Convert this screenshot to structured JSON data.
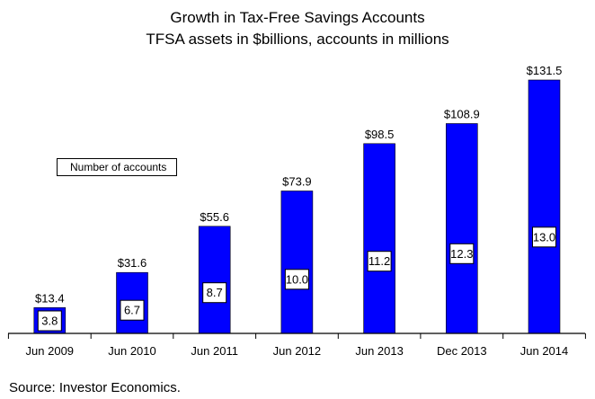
{
  "chart_data": {
    "type": "bar",
    "title": "Growth in Tax-Free Savings Accounts",
    "subtitle": "TFSA assets in $billions, accounts in millions",
    "categories": [
      "Jun 2009",
      "Jun 2010",
      "Jun 2011",
      "Jun 2012",
      "Jun 2013",
      "Dec 2013",
      "Jun 2014"
    ],
    "series": [
      {
        "values": [
          13.4,
          31.6,
          55.6,
          73.9,
          98.5,
          108.9,
          131.5
        ],
        "value_labels": [
          "$13.4",
          "$31.6",
          "$55.6",
          "$73.9",
          "$98.5",
          "$108.9",
          "$131.5"
        ]
      },
      {
        "name": "Number of accounts",
        "values": [
          3.8,
          6.7,
          8.7,
          10.0,
          11.2,
          12.3,
          13.0
        ],
        "value_labels": [
          "3.8",
          "6.7",
          "8.7",
          "10.0",
          "11.2",
          "12.3",
          "13.0"
        ]
      }
    ],
    "ylim": [
      0,
      131.5
    ],
    "grid": false,
    "legend": "upper-left",
    "bar_color": "#0000ff"
  },
  "source": "Source: Investor Economics."
}
